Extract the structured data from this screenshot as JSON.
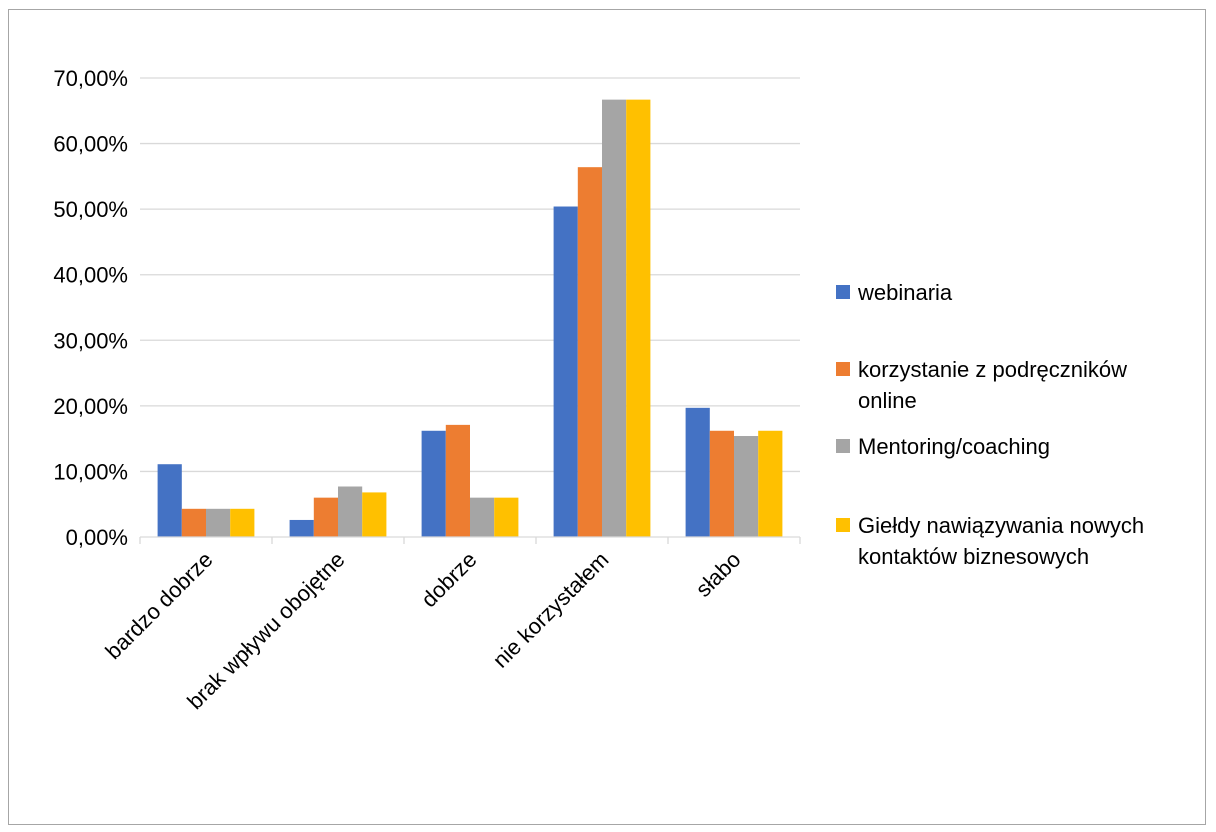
{
  "chart_data": {
    "type": "bar",
    "categories": [
      "bardzo dobrze",
      "brak wpływu obojętne",
      "dobrze",
      "nie korzystałem",
      "słabo"
    ],
    "series": [
      {
        "name": "webinaria",
        "color": "#4472C4",
        "values": [
          11.1,
          2.6,
          16.2,
          50.4,
          19.7
        ]
      },
      {
        "name": "korzystanie z podręczników online",
        "color": "#ED7D31",
        "values": [
          4.3,
          6.0,
          17.1,
          56.4,
          16.2
        ]
      },
      {
        "name": "Mentoring/coaching",
        "color": "#A5A5A5",
        "values": [
          4.3,
          7.7,
          6.0,
          66.7,
          15.4
        ]
      },
      {
        "name": "Giełdy nawiązywania nowych kontaktów biznesowych",
        "color": "#FFC000",
        "values": [
          4.3,
          6.8,
          6.0,
          66.7,
          16.2
        ]
      }
    ],
    "legend_lines": [
      [
        "webinaria"
      ],
      [
        "korzystanie z podręczników",
        "online"
      ],
      [
        "Mentoring/coaching"
      ],
      [
        "Giełdy nawiązywania nowych",
        "kontaktów biznesowych"
      ]
    ],
    "y_ticks": [
      "0,00%",
      "10,00%",
      "20,00%",
      "30,00%",
      "40,00%",
      "50,00%",
      "60,00%",
      "70,00%"
    ],
    "ylim": [
      0,
      70
    ],
    "title": "",
    "xlabel": "",
    "ylabel": "",
    "grid": true,
    "legend_position": "right"
  }
}
